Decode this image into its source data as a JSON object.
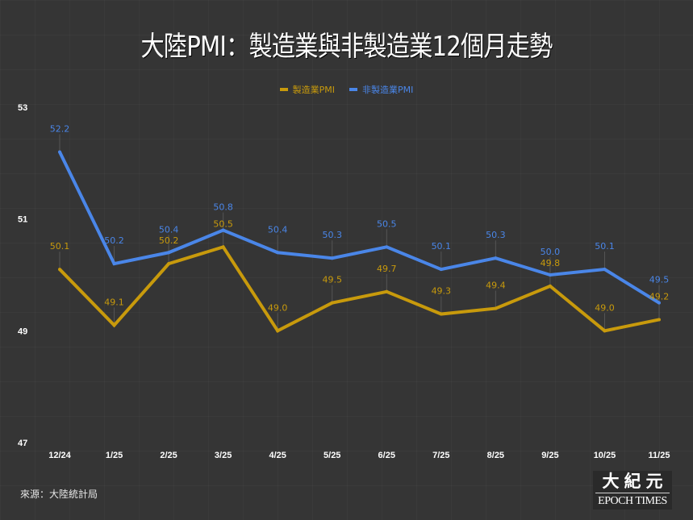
{
  "chart_data": {
    "type": "line",
    "title": "大陸PMI：製造業與非製造業12個月走勢",
    "xlabel": "",
    "ylabel": "",
    "categories": [
      "12/24",
      "1/25",
      "2/25",
      "3/25",
      "4/25",
      "5/25",
      "6/25",
      "7/25",
      "8/25",
      "9/25",
      "10/25",
      "11/25"
    ],
    "series": [
      {
        "name": "製造業PMI",
        "color": "#c89a0c",
        "values": [
          50.1,
          49.1,
          50.2,
          50.5,
          49.0,
          49.5,
          49.7,
          49.3,
          49.4,
          49.8,
          49.0,
          49.2
        ],
        "labels": [
          "50.1",
          "49.1",
          "50.2",
          "50.5",
          "49.0",
          "49.5",
          "49.7",
          "49.3",
          "49.4",
          "49.8",
          "49.0",
          "49.2"
        ]
      },
      {
        "name": "非製造業PMI",
        "color": "#4a86e8",
        "values": [
          52.2,
          50.2,
          50.4,
          50.8,
          50.4,
          50.3,
          50.5,
          50.1,
          50.3,
          50.0,
          50.1,
          49.5
        ],
        "labels": [
          "52.2",
          "50.2",
          "50.4",
          "50.8",
          "50.4",
          "50.3",
          "50.5",
          "50.1",
          "50.3",
          "50.0",
          "50.1",
          "49.5"
        ]
      }
    ],
    "ylim": [
      47,
      53
    ],
    "yticks": [
      "47",
      "49",
      "51",
      "53"
    ],
    "grid": false,
    "legend_position": "top-center"
  },
  "source": "來源：大陸統計局",
  "logo": {
    "chinese": "大紀元",
    "english": "EPOCH TIMES"
  },
  "colors": {
    "background": "#353535",
    "text": "#ffffff",
    "leader_line": "#555555"
  }
}
